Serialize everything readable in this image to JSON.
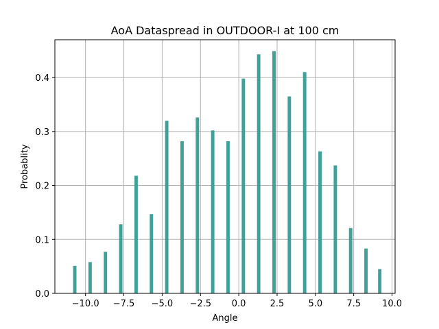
{
  "chart_data": {
    "type": "bar",
    "title": "AoA Dataspread in OUTDOOR-I at 100 cm",
    "xlabel": "Angle",
    "ylabel": "Probablity",
    "xlim": [
      -12.0,
      10.2
    ],
    "ylim": [
      0,
      0.47
    ],
    "xticks": [
      -10.0,
      -7.5,
      -5.0,
      -2.5,
      0.0,
      2.5,
      5.0,
      7.5,
      10.0
    ],
    "xtick_labels": [
      "−10.0",
      "−7.5",
      "−5.0",
      "−2.5",
      "0.0",
      "2.5",
      "5.0",
      "7.5",
      "10.0"
    ],
    "yticks": [
      0.0,
      0.1,
      0.2,
      0.3,
      0.4
    ],
    "ytick_labels": [
      "0.0",
      "0.1",
      "0.2",
      "0.3",
      "0.4"
    ],
    "grid": true,
    "bar_color": "#40a09a",
    "bar_width": 0.22,
    "x": [
      -10.7,
      -9.7,
      -8.7,
      -7.7,
      -6.7,
      -5.7,
      -4.7,
      -3.7,
      -2.7,
      -1.7,
      -0.7,
      0.3,
      1.3,
      2.3,
      3.3,
      4.3,
      5.3,
      6.3,
      7.3,
      8.3,
      9.2
    ],
    "values": [
      0.051,
      0.058,
      0.077,
      0.128,
      0.218,
      0.147,
      0.32,
      0.282,
      0.326,
      0.302,
      0.282,
      0.398,
      0.443,
      0.449,
      0.365,
      0.41,
      0.263,
      0.237,
      0.121,
      0.083,
      0.045
    ]
  }
}
